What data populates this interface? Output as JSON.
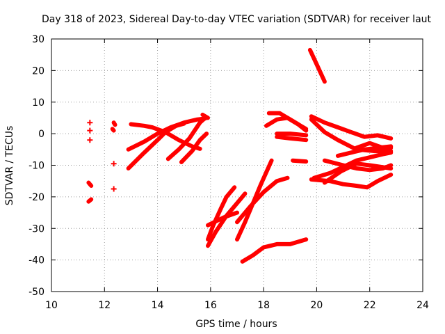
{
  "chart_data": {
    "type": "scatter",
    "title": "Day 318 of 2023, Sidereal Day-to-day VTEC variation (SDTVAR) for receiver laut",
    "xlabel": "GPS time / hours",
    "ylabel": "SDTVAR / TECUs",
    "xlim": [
      10,
      24
    ],
    "ylim": [
      -50,
      30
    ],
    "xticks": [
      10,
      12,
      14,
      16,
      18,
      20,
      22,
      24
    ],
    "yticks": [
      -50,
      -40,
      -30,
      -20,
      -10,
      0,
      10,
      20,
      30
    ],
    "grid": true,
    "legend": "none",
    "marker_color": "#ff0000",
    "tracks": [
      [
        [
          11.45,
          3.5
        ]
      ],
      [
        [
          11.45,
          1.0
        ]
      ],
      [
        [
          11.45,
          -2.0
        ]
      ],
      [
        [
          11.4,
          -15.5
        ],
        [
          11.5,
          -16.5
        ]
      ],
      [
        [
          11.4,
          -21.5
        ],
        [
          11.5,
          -20.8
        ]
      ],
      [
        [
          12.35,
          3.5
        ],
        [
          12.4,
          2.8
        ]
      ],
      [
        [
          12.3,
          1.5
        ],
        [
          12.35,
          1.0
        ]
      ],
      [
        [
          12.35,
          -9.5
        ]
      ],
      [
        [
          12.35,
          -17.5
        ]
      ],
      [
        [
          13.0,
          3.0
        ],
        [
          13.5,
          2.5
        ],
        [
          13.8,
          2.0
        ],
        [
          14.3,
          0.5
        ],
        [
          14.8,
          -2.0
        ],
        [
          15.3,
          -4.0
        ],
        [
          15.6,
          -4.8
        ]
      ],
      [
        [
          12.9,
          -5.0
        ],
        [
          13.5,
          -2.5
        ],
        [
          14.0,
          0.0
        ],
        [
          14.5,
          2.0
        ],
        [
          15.0,
          3.5
        ],
        [
          15.5,
          4.5
        ],
        [
          15.8,
          4.8
        ]
      ],
      [
        [
          12.9,
          -11.0
        ],
        [
          13.5,
          -6.0
        ],
        [
          14.0,
          -2.0
        ],
        [
          14.3,
          0.5
        ],
        [
          14.7,
          2.5
        ],
        [
          15.0,
          3.2
        ]
      ],
      [
        [
          14.4,
          -8.0
        ],
        [
          14.8,
          -5.0
        ],
        [
          15.2,
          -1.5
        ],
        [
          15.6,
          3.5
        ],
        [
          15.8,
          5.0
        ]
      ],
      [
        [
          15.7,
          6.0
        ],
        [
          15.9,
          5.0
        ]
      ],
      [
        [
          14.9,
          -9.0
        ],
        [
          15.3,
          -5.5
        ],
        [
          15.6,
          -2.0
        ],
        [
          15.85,
          0.0
        ]
      ],
      [
        [
          15.9,
          -35.5
        ],
        [
          16.2,
          -31.0
        ],
        [
          16.6,
          -26.0
        ],
        [
          17.0,
          -22.0
        ],
        [
          17.3,
          -19.0
        ]
      ],
      [
        [
          15.9,
          -29.0
        ],
        [
          16.5,
          -26.5
        ],
        [
          17.0,
          -25.0
        ]
      ],
      [
        [
          15.9,
          -33.5
        ],
        [
          16.1,
          -29.0
        ],
        [
          16.4,
          -23.5
        ],
        [
          16.6,
          -20.0
        ],
        [
          16.9,
          -17.0
        ]
      ],
      [
        [
          17.0,
          -33.5
        ],
        [
          17.3,
          -28.0
        ],
        [
          17.6,
          -22.0
        ],
        [
          17.9,
          -16.0
        ],
        [
          18.3,
          -8.5
        ]
      ],
      [
        [
          17.0,
          -28.0
        ],
        [
          17.5,
          -23.0
        ],
        [
          18.0,
          -18.5
        ],
        [
          18.5,
          -15.0
        ],
        [
          18.9,
          -14.0
        ]
      ],
      [
        [
          17.2,
          -40.5
        ],
        [
          17.6,
          -38.5
        ],
        [
          18.0,
          -36.0
        ],
        [
          18.5,
          -35.0
        ],
        [
          19.0,
          -35.0
        ],
        [
          19.6,
          -33.5
        ]
      ],
      [
        [
          18.1,
          2.5
        ],
        [
          18.5,
          4.5
        ],
        [
          18.9,
          5.0
        ],
        [
          19.3,
          3.0
        ],
        [
          19.6,
          1.0
        ]
      ],
      [
        [
          18.2,
          6.5
        ],
        [
          18.6,
          6.5
        ],
        [
          19.0,
          4.5
        ],
        [
          19.4,
          2.5
        ],
        [
          19.6,
          1.5
        ]
      ],
      [
        [
          18.5,
          -1.0
        ],
        [
          19.0,
          -1.5
        ],
        [
          19.6,
          -2.0
        ]
      ],
      [
        [
          18.5,
          0.0
        ],
        [
          19.0,
          0.0
        ],
        [
          19.6,
          -0.5
        ]
      ],
      [
        [
          19.1,
          -8.5
        ],
        [
          19.6,
          -8.8
        ]
      ],
      [
        [
          19.75,
          26.5
        ],
        [
          20.0,
          22.0
        ],
        [
          20.3,
          16.5
        ]
      ],
      [
        [
          19.8,
          5.5
        ],
        [
          20.3,
          3.5
        ],
        [
          20.8,
          2.0
        ],
        [
          21.3,
          0.5
        ],
        [
          21.8,
          -1.0
        ],
        [
          22.3,
          -0.5
        ],
        [
          22.8,
          -1.5
        ]
      ],
      [
        [
          19.8,
          4.5
        ],
        [
          20.3,
          0.5
        ],
        [
          20.8,
          -2.0
        ],
        [
          21.5,
          -5.0
        ],
        [
          22.2,
          -5.5
        ],
        [
          22.8,
          -5.5
        ]
      ],
      [
        [
          19.8,
          -14.5
        ],
        [
          20.5,
          -15.0
        ],
        [
          21.0,
          -16.0
        ],
        [
          21.5,
          -16.5
        ],
        [
          21.9,
          -17.0
        ],
        [
          22.3,
          -15.0
        ],
        [
          22.8,
          -13.0
        ]
      ],
      [
        [
          19.9,
          -14.0
        ],
        [
          20.5,
          -12.5
        ],
        [
          21.0,
          -10.5
        ],
        [
          21.5,
          -8.5
        ],
        [
          22.0,
          -7.5
        ],
        [
          22.5,
          -6.5
        ],
        [
          22.8,
          -6.0
        ]
      ],
      [
        [
          20.3,
          -8.5
        ],
        [
          21.0,
          -10.0
        ],
        [
          21.5,
          -11.0
        ],
        [
          22.0,
          -11.5
        ],
        [
          22.5,
          -11.0
        ],
        [
          22.8,
          -10.0
        ]
      ],
      [
        [
          20.3,
          -15.5
        ],
        [
          20.9,
          -12.0
        ],
        [
          21.5,
          -9.5
        ],
        [
          22.0,
          -10.0
        ],
        [
          22.8,
          -11.0
        ]
      ],
      [
        [
          20.8,
          -7.0
        ],
        [
          21.3,
          -6.0
        ],
        [
          21.8,
          -5.0
        ],
        [
          22.3,
          -4.5
        ],
        [
          22.8,
          -4.0
        ]
      ],
      [
        [
          21.5,
          -4.5
        ],
        [
          22.0,
          -3.0
        ],
        [
          22.5,
          -4.5
        ],
        [
          22.8,
          -4.5
        ]
      ]
    ]
  }
}
